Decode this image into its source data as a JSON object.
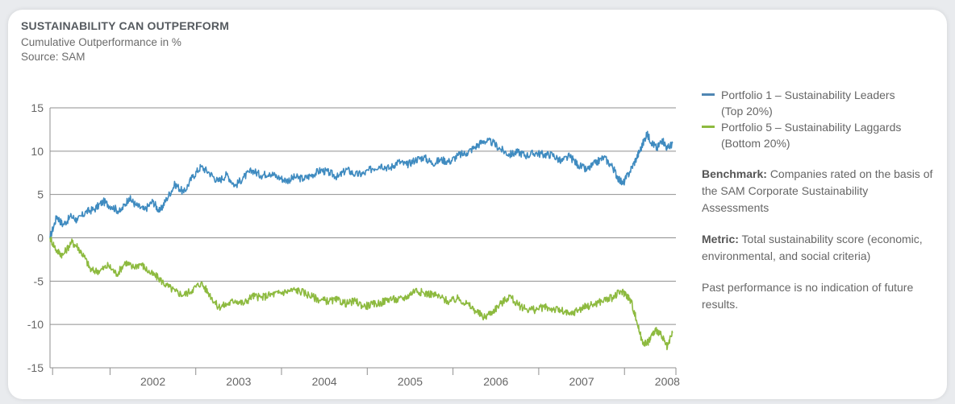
{
  "header": {
    "title": "SUSTAINABILITY CAN OUTPERFORM",
    "subtitle": "Cumulative Outperformance in %",
    "source": "Source: SAM"
  },
  "legend": {
    "items": [
      {
        "label_line1": "Portfolio 1 – Sustainability Leaders",
        "label_line2": "(Top 20%)",
        "color": "#4f86b3"
      },
      {
        "label_line1": "Portfolio 5 – Sustainability Laggards",
        "label_line2": "(Bottom 20%)",
        "color": "#8dba3f"
      }
    ]
  },
  "notes": {
    "benchmark_label": "Benchmark:",
    "benchmark_text": "Companies rated on the basis of the SAM Corporate Sustainability Assessments",
    "metric_label": "Metric:",
    "metric_text": "Total sustainability score (economic, environmental, and social criteria)",
    "disclaimer": "Past performance is no indication of future results."
  },
  "chart_data": {
    "type": "line",
    "ylim": [
      -15,
      15
    ],
    "yticks": [
      15,
      10,
      5,
      0,
      -5,
      -10,
      -15
    ],
    "xlim": [
      2001.3,
      2008.6
    ],
    "xtick_labels": [
      "2002",
      "2003",
      "2004",
      "2005",
      "2006",
      "2007",
      "2008"
    ],
    "grid": true,
    "legend_position": "right",
    "series": [
      {
        "name": "Portfolio 1 – Sustainability Leaders (Top 20%)",
        "color": "#3f8bc0",
        "points": [
          [
            2001.3,
            0.0
          ],
          [
            2001.38,
            2.5
          ],
          [
            2001.45,
            1.5
          ],
          [
            2001.55,
            2.5
          ],
          [
            2001.62,
            2.0
          ],
          [
            2001.72,
            3.0
          ],
          [
            2001.82,
            3.3
          ],
          [
            2001.92,
            4.2
          ],
          [
            2002.02,
            3.6
          ],
          [
            2002.12,
            3.0
          ],
          [
            2002.22,
            4.6
          ],
          [
            2002.3,
            3.8
          ],
          [
            2002.4,
            3.2
          ],
          [
            2002.5,
            4.2
          ],
          [
            2002.58,
            3.0
          ],
          [
            2002.66,
            4.5
          ],
          [
            2002.76,
            6.2
          ],
          [
            2002.86,
            5.2
          ],
          [
            2002.96,
            7.0
          ],
          [
            2003.06,
            8.2
          ],
          [
            2003.16,
            7.5
          ],
          [
            2003.26,
            6.5
          ],
          [
            2003.36,
            7.3
          ],
          [
            2003.46,
            6.0
          ],
          [
            2003.56,
            7.0
          ],
          [
            2003.66,
            7.8
          ],
          [
            2003.76,
            7.2
          ],
          [
            2003.86,
            7.5
          ],
          [
            2003.96,
            7.0
          ],
          [
            2004.06,
            6.6
          ],
          [
            2004.16,
            7.0
          ],
          [
            2004.26,
            6.8
          ],
          [
            2004.36,
            7.3
          ],
          [
            2004.46,
            7.8
          ],
          [
            2004.56,
            7.5
          ],
          [
            2004.66,
            7.0
          ],
          [
            2004.76,
            7.9
          ],
          [
            2004.86,
            7.3
          ],
          [
            2004.96,
            7.4
          ],
          [
            2005.06,
            8.0
          ],
          [
            2005.16,
            8.4
          ],
          [
            2005.26,
            8.0
          ],
          [
            2005.36,
            8.8
          ],
          [
            2005.46,
            8.4
          ],
          [
            2005.56,
            9.0
          ],
          [
            2005.66,
            9.3
          ],
          [
            2005.76,
            8.6
          ],
          [
            2005.86,
            9.0
          ],
          [
            2005.96,
            8.8
          ],
          [
            2006.06,
            9.5
          ],
          [
            2006.16,
            9.8
          ],
          [
            2006.26,
            10.5
          ],
          [
            2006.36,
            11.2
          ],
          [
            2006.46,
            11.0
          ],
          [
            2006.56,
            10.2
          ],
          [
            2006.66,
            9.6
          ],
          [
            2006.76,
            9.9
          ],
          [
            2006.86,
            9.5
          ],
          [
            2006.96,
            9.8
          ],
          [
            2007.06,
            9.6
          ],
          [
            2007.16,
            9.6
          ],
          [
            2007.26,
            8.8
          ],
          [
            2007.36,
            9.4
          ],
          [
            2007.46,
            8.4
          ],
          [
            2007.56,
            7.8
          ],
          [
            2007.66,
            8.6
          ],
          [
            2007.76,
            9.3
          ],
          [
            2007.86,
            8.2
          ],
          [
            2007.92,
            7.0
          ],
          [
            2007.98,
            6.2
          ],
          [
            2008.06,
            7.6
          ],
          [
            2008.14,
            9.2
          ],
          [
            2008.2,
            10.5
          ],
          [
            2008.26,
            12.0
          ],
          [
            2008.32,
            11.0
          ],
          [
            2008.38,
            10.3
          ],
          [
            2008.44,
            11.4
          ],
          [
            2008.5,
            10.3
          ],
          [
            2008.56,
            10.9
          ]
        ]
      },
      {
        "name": "Portfolio 5 – Sustainability Laggards (Bottom 20%)",
        "color": "#8dba3f",
        "points": [
          [
            2001.3,
            0.0
          ],
          [
            2001.38,
            -1.5
          ],
          [
            2001.45,
            -2.0
          ],
          [
            2001.55,
            -0.5
          ],
          [
            2001.62,
            -1.0
          ],
          [
            2001.7,
            -2.2
          ],
          [
            2001.78,
            -3.8
          ],
          [
            2001.88,
            -3.8
          ],
          [
            2001.98,
            -3.2
          ],
          [
            2002.08,
            -4.2
          ],
          [
            2002.18,
            -2.8
          ],
          [
            2002.26,
            -3.4
          ],
          [
            2002.36,
            -3.0
          ],
          [
            2002.46,
            -4.0
          ],
          [
            2002.56,
            -4.6
          ],
          [
            2002.66,
            -5.5
          ],
          [
            2002.76,
            -6.2
          ],
          [
            2002.86,
            -6.6
          ],
          [
            2002.96,
            -6.0
          ],
          [
            2003.06,
            -5.2
          ],
          [
            2003.16,
            -6.5
          ],
          [
            2003.26,
            -8.0
          ],
          [
            2003.36,
            -7.7
          ],
          [
            2003.46,
            -7.2
          ],
          [
            2003.56,
            -7.6
          ],
          [
            2003.66,
            -6.7
          ],
          [
            2003.76,
            -6.9
          ],
          [
            2003.86,
            -6.6
          ],
          [
            2003.96,
            -6.4
          ],
          [
            2004.06,
            -6.2
          ],
          [
            2004.16,
            -6.0
          ],
          [
            2004.26,
            -6.3
          ],
          [
            2004.36,
            -6.8
          ],
          [
            2004.46,
            -7.2
          ],
          [
            2004.56,
            -7.3
          ],
          [
            2004.66,
            -7.2
          ],
          [
            2004.76,
            -7.6
          ],
          [
            2004.86,
            -7.3
          ],
          [
            2004.96,
            -7.9
          ],
          [
            2005.06,
            -7.7
          ],
          [
            2005.16,
            -7.5
          ],
          [
            2005.26,
            -7.0
          ],
          [
            2005.36,
            -7.2
          ],
          [
            2005.46,
            -6.8
          ],
          [
            2005.56,
            -6.0
          ],
          [
            2005.66,
            -6.4
          ],
          [
            2005.76,
            -6.5
          ],
          [
            2005.86,
            -6.9
          ],
          [
            2005.96,
            -7.4
          ],
          [
            2006.06,
            -7.0
          ],
          [
            2006.16,
            -7.6
          ],
          [
            2006.26,
            -8.4
          ],
          [
            2006.36,
            -9.2
          ],
          [
            2006.46,
            -8.5
          ],
          [
            2006.56,
            -7.6
          ],
          [
            2006.66,
            -6.7
          ],
          [
            2006.76,
            -7.8
          ],
          [
            2006.86,
            -8.2
          ],
          [
            2006.96,
            -8.3
          ],
          [
            2007.06,
            -8.0
          ],
          [
            2007.16,
            -8.2
          ],
          [
            2007.26,
            -8.4
          ],
          [
            2007.36,
            -8.9
          ],
          [
            2007.46,
            -8.3
          ],
          [
            2007.56,
            -7.9
          ],
          [
            2007.66,
            -7.6
          ],
          [
            2007.76,
            -7.2
          ],
          [
            2007.86,
            -6.9
          ],
          [
            2007.96,
            -6.2
          ],
          [
            2008.02,
            -6.5
          ],
          [
            2008.08,
            -7.4
          ],
          [
            2008.14,
            -9.5
          ],
          [
            2008.2,
            -11.8
          ],
          [
            2008.26,
            -12.3
          ],
          [
            2008.32,
            -11.2
          ],
          [
            2008.38,
            -10.6
          ],
          [
            2008.44,
            -11.5
          ],
          [
            2008.5,
            -12.7
          ],
          [
            2008.56,
            -11.0
          ]
        ]
      }
    ]
  }
}
